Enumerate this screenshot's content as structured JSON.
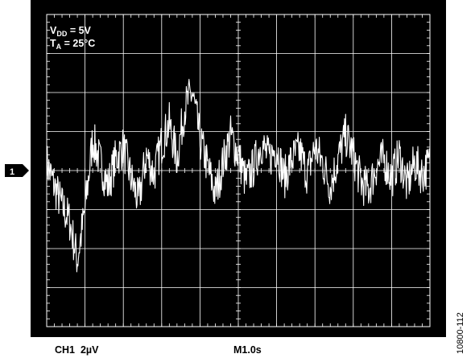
{
  "chart_data": {
    "type": "line",
    "title": "",
    "annotation_lines": [
      {
        "main": "V",
        "sub": "DD",
        "rest": " = 5V"
      },
      {
        "main": "T",
        "sub": "A",
        "rest": " = 25°C"
      }
    ],
    "channel_marker": "1",
    "channel_scale": "CH1  2µV",
    "time_scale": "M1.0s",
    "grid": true,
    "divisions": {
      "x": 10,
      "y": 8
    },
    "ylim": [
      -8,
      8
    ],
    "xlim": [
      0,
      10
    ],
    "y_unit": "µV",
    "x_unit": "s",
    "series": [
      {
        "x": [
          0,
          0.2,
          0.4,
          0.6,
          0.8,
          1.0,
          1.2,
          1.4,
          1.6,
          1.8,
          2.0,
          2.2,
          2.4,
          2.6,
          2.8,
          3.0,
          3.2,
          3.4,
          3.6,
          3.8,
          4.0,
          4.2,
          4.4,
          4.6,
          4.8,
          5.0,
          5.2,
          5.4,
          5.6,
          5.8,
          6.0,
          6.2,
          6.4,
          6.6,
          6.8,
          7.0,
          7.2,
          7.4,
          7.6,
          7.8,
          8.0,
          8.2,
          8.4,
          8.6,
          8.8,
          9.0,
          9.2,
          9.4,
          9.6,
          9.8,
          10.0
        ],
        "y": [
          0.4,
          -0.8,
          -1.8,
          -2.6,
          -4.6,
          -2.0,
          1.6,
          0.4,
          -0.8,
          0.6,
          1.2,
          -0.4,
          -1.6,
          0.8,
          -0.2,
          1.4,
          2.4,
          0.6,
          3.2,
          4.0,
          1.6,
          0.2,
          -1.2,
          0.4,
          1.8,
          0.8,
          -0.6,
          0.2,
          1.4,
          0.6,
          1.2,
          -0.4,
          0.6,
          1.0,
          -0.2,
          1.2,
          0.4,
          -0.8,
          0.6,
          1.8,
          0.8,
          -0.6,
          -1.0,
          0.2,
          0.6,
          -0.4,
          0.8,
          -0.8,
          0.4,
          -0.2,
          0.4
        ]
      }
    ]
  },
  "figure_id": "10800-112"
}
